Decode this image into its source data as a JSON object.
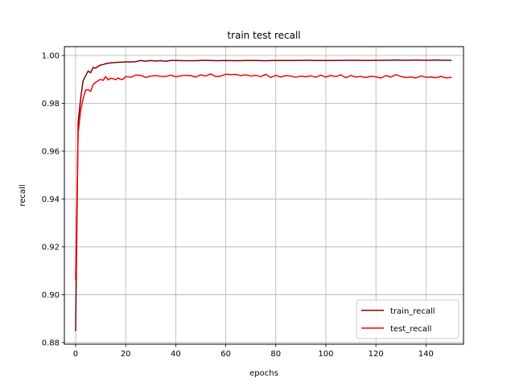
{
  "chart_data": {
    "type": "line",
    "title": "train test recall",
    "xlabel": "epochs",
    "ylabel": "recall",
    "xlim": [
      -4.5,
      155
    ],
    "ylim": [
      0.8793,
      1.0037
    ],
    "xticks": [
      0,
      20,
      40,
      60,
      80,
      100,
      120,
      140
    ],
    "yticks": [
      0.88,
      0.9,
      0.92,
      0.94,
      0.96,
      0.98,
      1.0
    ],
    "ytick_labels": [
      "0.88",
      "0.90",
      "0.92",
      "0.94",
      "0.96",
      "0.98",
      "1.00"
    ],
    "grid": true,
    "legend_position": "lower-right",
    "series": [
      {
        "name": "train_recall",
        "color": "#800000",
        "points": [
          [
            0,
            0.885
          ],
          [
            1,
            0.972
          ],
          [
            2,
            0.982
          ],
          [
            3,
            0.9895
          ],
          [
            4,
            0.9915
          ],
          [
            5,
            0.9935
          ],
          [
            6,
            0.9928
          ],
          [
            7,
            0.995
          ],
          [
            8,
            0.9947
          ],
          [
            9,
            0.9955
          ],
          [
            10,
            0.996
          ],
          [
            11,
            0.9962
          ],
          [
            12,
            0.9966
          ],
          [
            14,
            0.9969
          ],
          [
            16,
            0.9971
          ],
          [
            18,
            0.9972
          ],
          [
            20,
            0.9973
          ],
          [
            22,
            0.9973
          ],
          [
            24,
            0.9974
          ],
          [
            26,
            0.9979
          ],
          [
            28,
            0.9976
          ],
          [
            30,
            0.9979
          ],
          [
            32,
            0.9977
          ],
          [
            34,
            0.9978
          ],
          [
            36,
            0.9976
          ],
          [
            38,
            0.9979
          ],
          [
            40,
            0.9979
          ],
          [
            44,
            0.9978
          ],
          [
            48,
            0.9978
          ],
          [
            52,
            0.998
          ],
          [
            56,
            0.9978
          ],
          [
            60,
            0.9979
          ],
          [
            64,
            0.9978
          ],
          [
            68,
            0.9979
          ],
          [
            72,
            0.9979
          ],
          [
            76,
            0.9978
          ],
          [
            80,
            0.9979
          ],
          [
            84,
            0.9979
          ],
          [
            88,
            0.9979
          ],
          [
            92,
            0.998
          ],
          [
            96,
            0.9979
          ],
          [
            100,
            0.9979
          ],
          [
            104,
            0.9979
          ],
          [
            108,
            0.998
          ],
          [
            112,
            0.998
          ],
          [
            116,
            0.9979
          ],
          [
            120,
            0.998
          ],
          [
            124,
            0.998
          ],
          [
            128,
            0.9981
          ],
          [
            132,
            0.998
          ],
          [
            136,
            0.9981
          ],
          [
            140,
            0.998
          ],
          [
            144,
            0.9981
          ],
          [
            148,
            0.998
          ],
          [
            150,
            0.998
          ]
        ]
      },
      {
        "name": "test_recall",
        "color": "#ff0000",
        "points": [
          [
            0,
            0.9065
          ],
          [
            1,
            0.9675
          ],
          [
            2,
            0.977
          ],
          [
            3,
            0.982
          ],
          [
            4,
            0.9855
          ],
          [
            5,
            0.9857
          ],
          [
            6,
            0.985
          ],
          [
            7,
            0.9878
          ],
          [
            8,
            0.9888
          ],
          [
            9,
            0.9895
          ],
          [
            10,
            0.99
          ],
          [
            11,
            0.9896
          ],
          [
            12,
            0.9912
          ],
          [
            13,
            0.9898
          ],
          [
            14,
            0.9905
          ],
          [
            15,
            0.9903
          ],
          [
            16,
            0.9899
          ],
          [
            17,
            0.9906
          ],
          [
            18,
            0.99
          ],
          [
            19,
            0.9901
          ],
          [
            20,
            0.9912
          ],
          [
            22,
            0.9909
          ],
          [
            24,
            0.9918
          ],
          [
            26,
            0.9917
          ],
          [
            28,
            0.9908
          ],
          [
            30,
            0.9914
          ],
          [
            32,
            0.9916
          ],
          [
            34,
            0.9913
          ],
          [
            36,
            0.9912
          ],
          [
            38,
            0.9918
          ],
          [
            40,
            0.9911
          ],
          [
            42,
            0.9915
          ],
          [
            44,
            0.9917
          ],
          [
            46,
            0.9916
          ],
          [
            48,
            0.991
          ],
          [
            50,
            0.9919
          ],
          [
            52,
            0.9914
          ],
          [
            54,
            0.9923
          ],
          [
            56,
            0.9912
          ],
          [
            58,
            0.9914
          ],
          [
            60,
            0.9922
          ],
          [
            62,
            0.992
          ],
          [
            64,
            0.9921
          ],
          [
            66,
            0.9916
          ],
          [
            68,
            0.9919
          ],
          [
            70,
            0.9914
          ],
          [
            72,
            0.9917
          ],
          [
            74,
            0.9912
          ],
          [
            76,
            0.9921
          ],
          [
            78,
            0.9908
          ],
          [
            80,
            0.9917
          ],
          [
            82,
            0.991
          ],
          [
            84,
            0.9916
          ],
          [
            86,
            0.9914
          ],
          [
            88,
            0.9909
          ],
          [
            90,
            0.9914
          ],
          [
            92,
            0.9911
          ],
          [
            94,
            0.9915
          ],
          [
            96,
            0.9909
          ],
          [
            98,
            0.9918
          ],
          [
            100,
            0.991
          ],
          [
            102,
            0.9916
          ],
          [
            104,
            0.9912
          ],
          [
            106,
            0.9919
          ],
          [
            108,
            0.9907
          ],
          [
            110,
            0.9916
          ],
          [
            112,
            0.991
          ],
          [
            114,
            0.9912
          ],
          [
            116,
            0.9908
          ],
          [
            118,
            0.9913
          ],
          [
            120,
            0.9911
          ],
          [
            122,
            0.9906
          ],
          [
            124,
            0.9916
          ],
          [
            126,
            0.991
          ],
          [
            128,
            0.992
          ],
          [
            130,
            0.9912
          ],
          [
            132,
            0.9908
          ],
          [
            134,
            0.991
          ],
          [
            136,
            0.9906
          ],
          [
            138,
            0.9915
          ],
          [
            140,
            0.9909
          ],
          [
            142,
            0.991
          ],
          [
            144,
            0.9907
          ],
          [
            146,
            0.9913
          ],
          [
            148,
            0.9906
          ],
          [
            150,
            0.9909
          ]
        ]
      }
    ]
  }
}
